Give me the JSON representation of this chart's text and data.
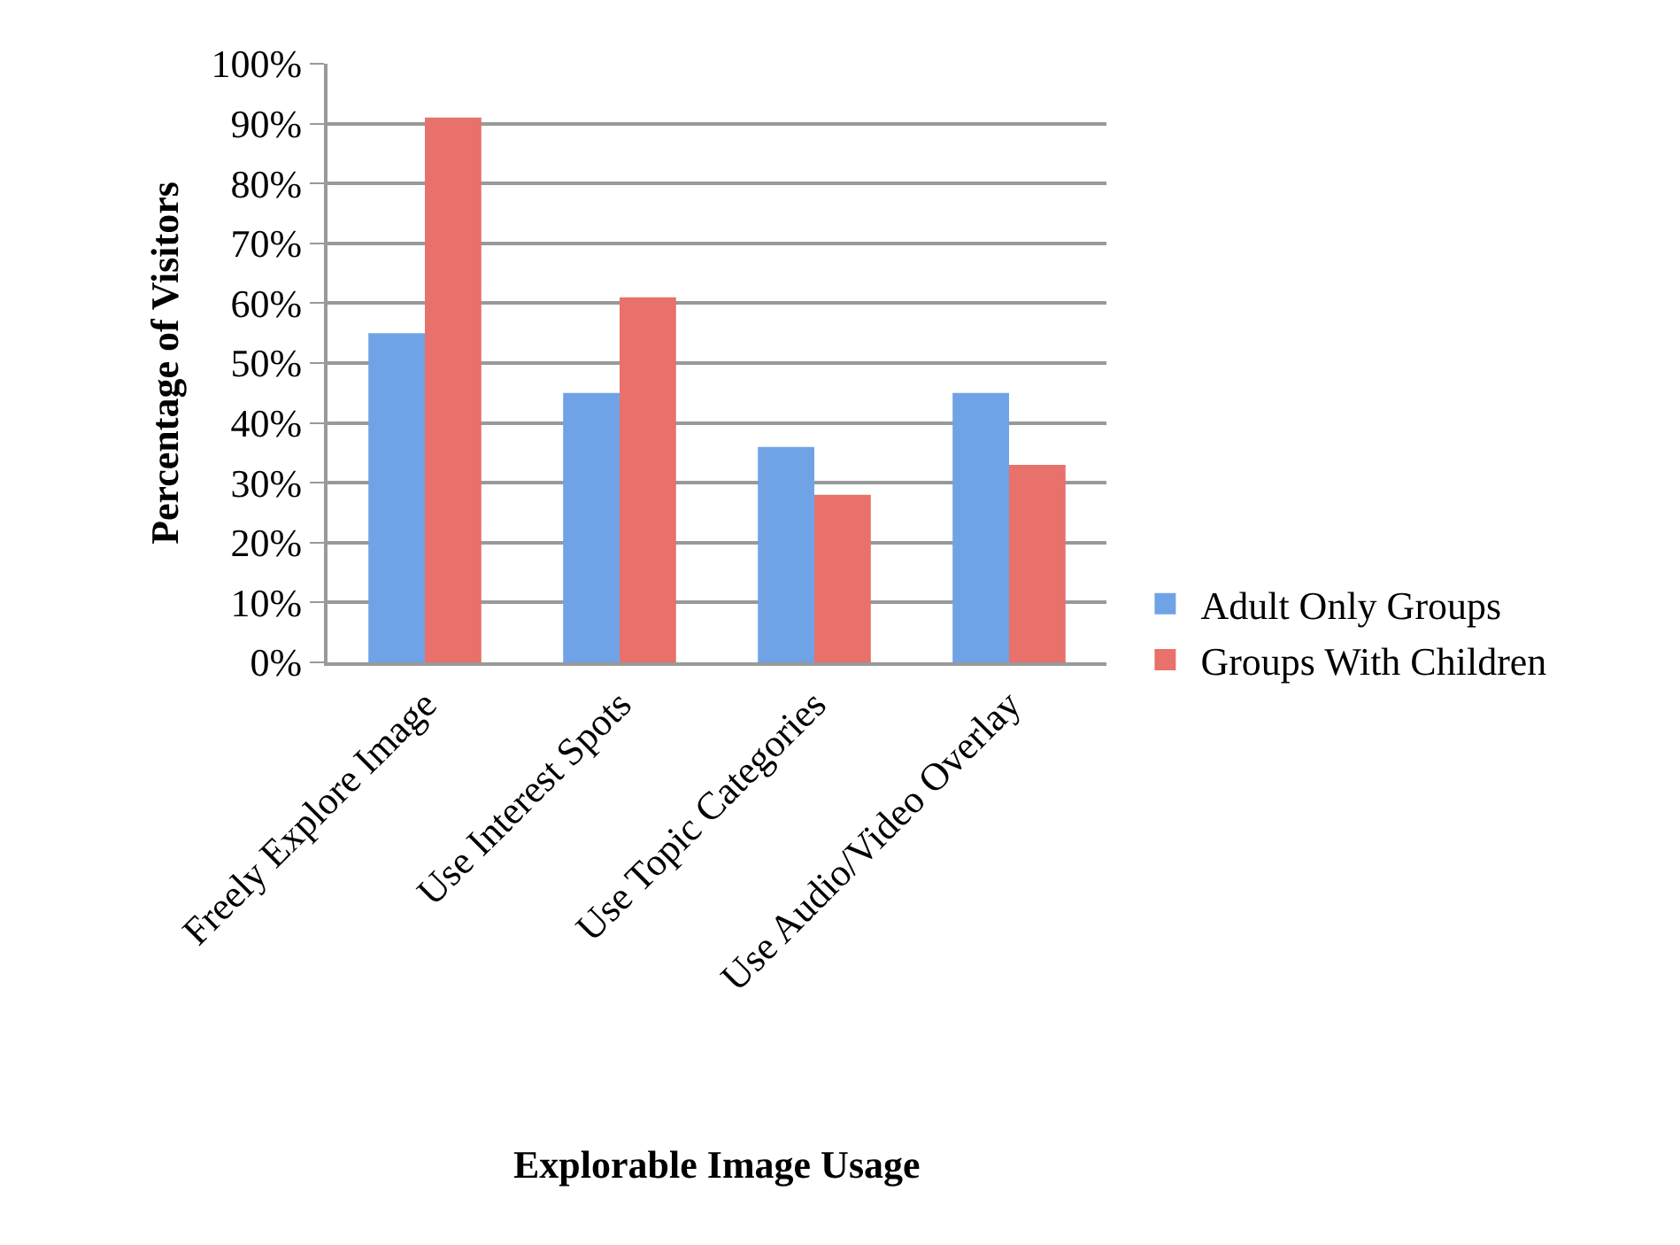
{
  "chart_data": {
    "type": "bar",
    "xlabel": "Explorable Image Usage",
    "ylabel": "Percentage of Visitors",
    "categories": [
      "Freely Explore Image",
      "Use Interest Spots",
      "Use Topic Categories",
      "Use Audio/Video Overlay"
    ],
    "series": [
      {
        "name": "Adult Only Groups",
        "color": "#6fa3e6",
        "values": [
          55,
          45,
          36,
          45
        ]
      },
      {
        "name": "Groups With Children",
        "color": "#e8716b",
        "values": [
          91,
          61,
          28,
          33
        ]
      }
    ],
    "ylim": [
      0,
      100
    ],
    "yticks": [
      {
        "value": 0,
        "label": "0%"
      },
      {
        "value": 10,
        "label": "10%"
      },
      {
        "value": 20,
        "label": "20%"
      },
      {
        "value": 30,
        "label": "30%"
      },
      {
        "value": 40,
        "label": "40%"
      },
      {
        "value": 50,
        "label": "50%"
      },
      {
        "value": 60,
        "label": "60%"
      },
      {
        "value": 70,
        "label": "70%"
      },
      {
        "value": 80,
        "label": "80%"
      },
      {
        "value": 90,
        "label": "90%"
      },
      {
        "value": 100,
        "label": "100%"
      }
    ],
    "grid": "y",
    "legend": "right"
  }
}
